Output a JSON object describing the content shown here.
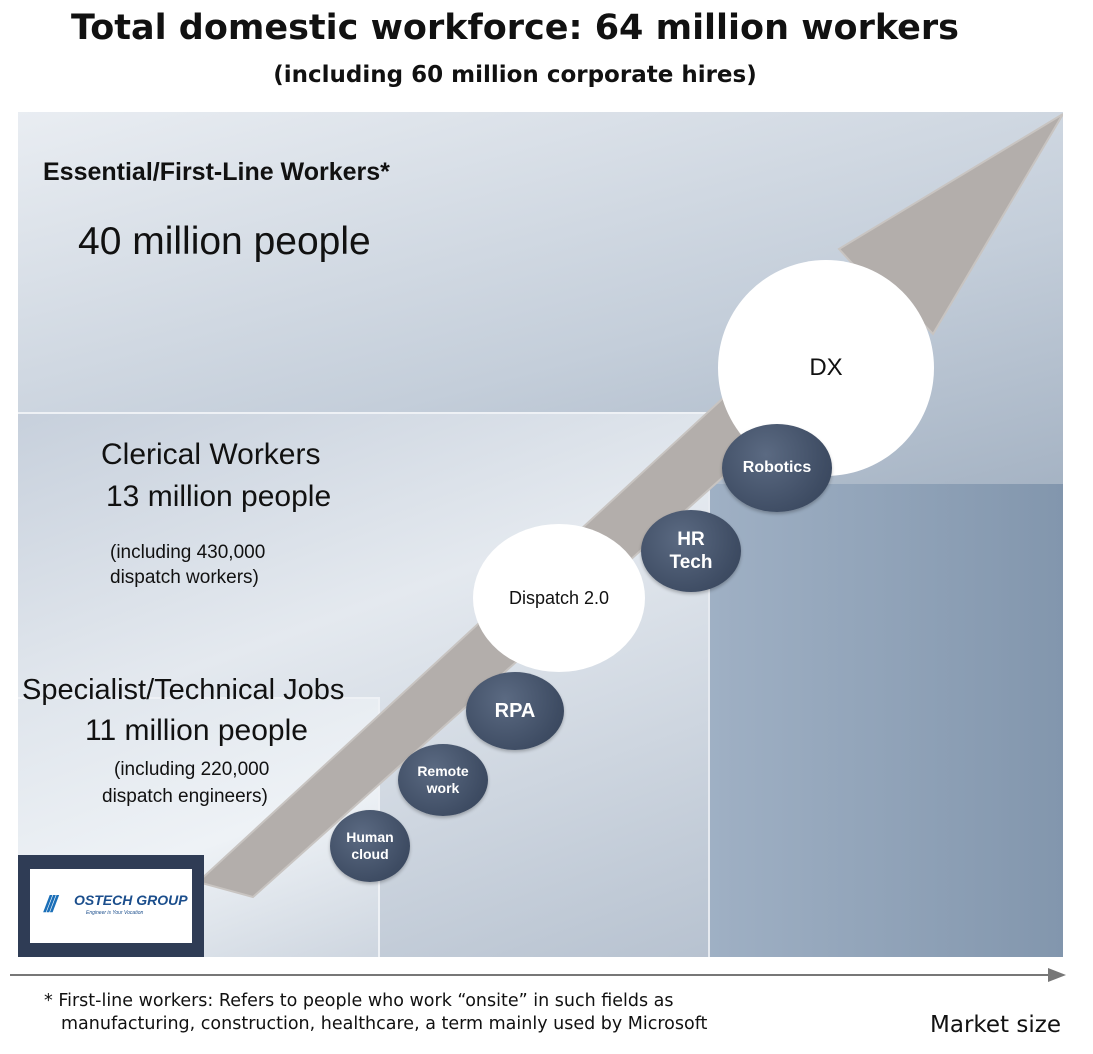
{
  "header": {
    "title": "Total domestic workforce: 64 million workers",
    "subtitle": "(including 60 million corporate hires)"
  },
  "segments": {
    "essential": {
      "heading": "Essential/First-Line Workers*",
      "count": "40 million people"
    },
    "clerical": {
      "heading": "Clerical Workers",
      "count": "13 million people",
      "note_line1": "(including 430,000",
      "note_line2": "dispatch workers)"
    },
    "specialist": {
      "heading": "Specialist/Technical Jobs",
      "count": "11 million people",
      "note_line1": "(including 220,000",
      "note_line2": "dispatch engineers)"
    }
  },
  "bubbles": {
    "dx": "DX",
    "robotics": "Robotics",
    "hr_line1": "HR",
    "hr_line2": "Tech",
    "dispatch": "Dispatch 2.0",
    "rpa": "RPA",
    "remote_line1": "Remote",
    "remote_line2": "work",
    "human_line1": "Human",
    "human_line2": "cloud"
  },
  "logo": {
    "slashes": "///",
    "name": "OSTECH GROUP",
    "tagline": "Engineer is Your Vocation"
  },
  "footnote": {
    "line1": "* First-line workers: Refers to people who work “onsite” in such fields as",
    "line2": "manufacturing, construction, healthcare, a term mainly used by Microsoft"
  },
  "axis": {
    "label": "Market size"
  },
  "colors": {
    "arrow": "#b3aeab",
    "bubble_dark": "#3e4c63",
    "logo_bg": "#2f3c55",
    "logo_text": "#1b4e8c"
  }
}
